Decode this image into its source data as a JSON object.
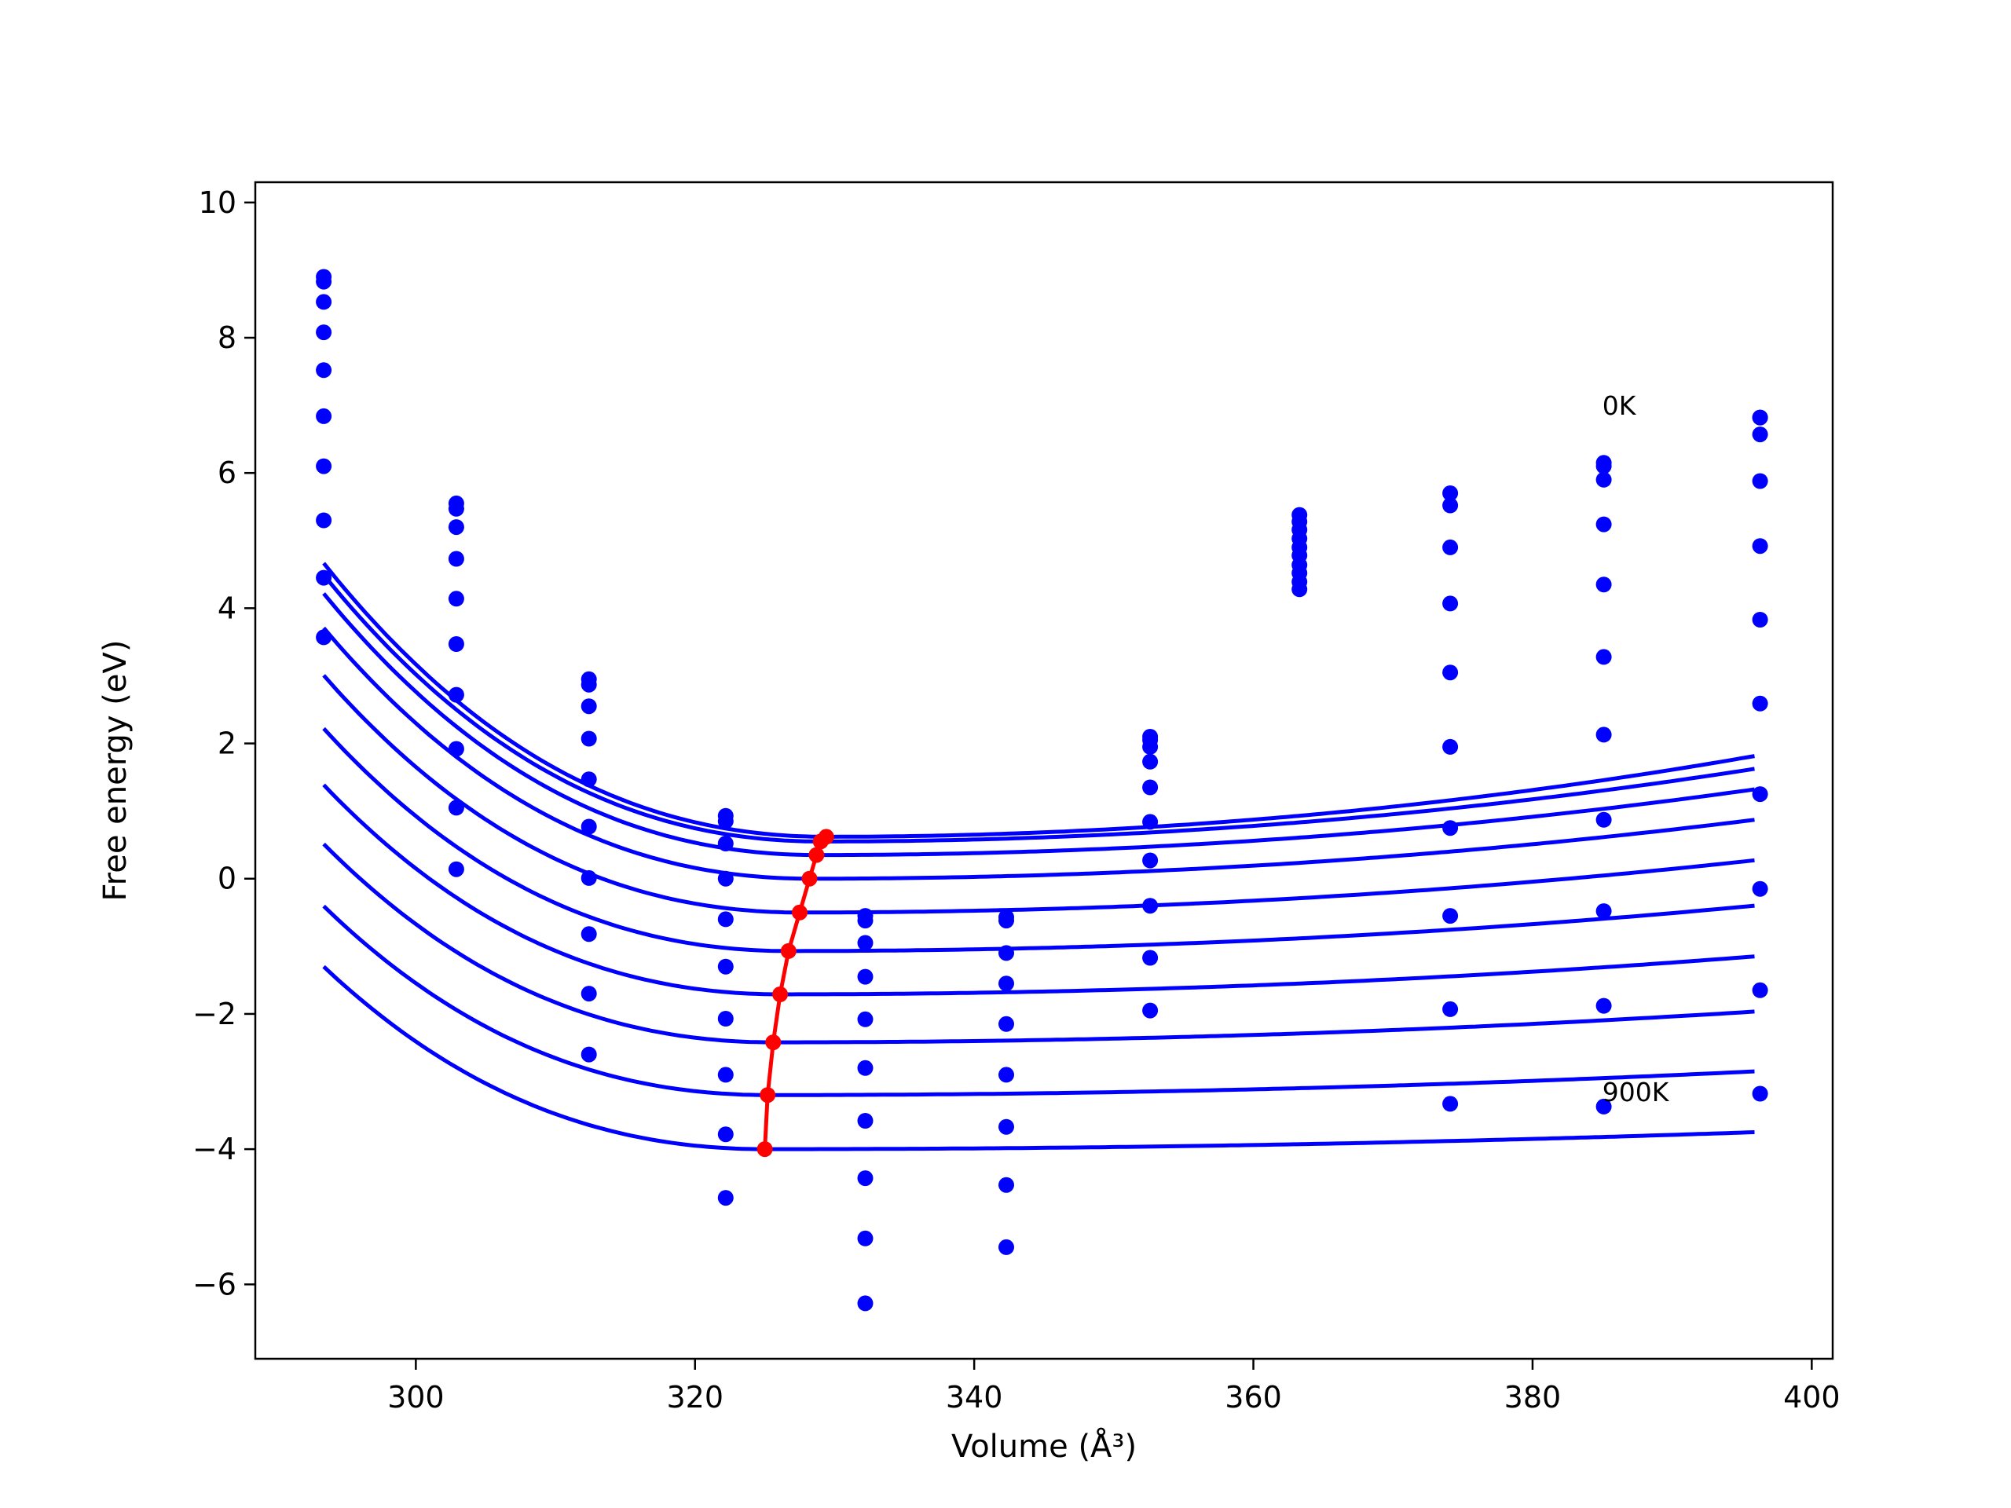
{
  "chart_data": {
    "type": "line",
    "xlabel": "Volume (Å³)",
    "ylabel": "Free energy (eV)",
    "xlim": [
      288.5,
      401.5
    ],
    "ylim": [
      -7.1,
      10.3
    ],
    "xticks": [
      300,
      320,
      340,
      360,
      380,
      400
    ],
    "xtick_labels": [
      "300",
      "320",
      "340",
      "360",
      "380",
      "400"
    ],
    "yticks": [
      -6,
      -4,
      -2,
      0,
      2,
      4,
      6,
      8,
      10
    ],
    "ytick_labels": [
      "−6",
      "−4",
      "−2",
      "0",
      "2",
      "4",
      "6",
      "8",
      "10"
    ],
    "grid": false,
    "colors": {
      "fit": "#0000ff",
      "points": "#0000ff",
      "minimum": "#ff0000"
    },
    "volumes": [
      293.4,
      302.9,
      312.4,
      322.2,
      332.2,
      342.3,
      352.6,
      363.3,
      374.1,
      385.1,
      396.3
    ],
    "energy_points": [
      [
        8.9,
        5.55,
        2.95,
        0.93,
        -0.55,
        -0.57,
        2.1,
        5.38,
        5.7,
        6.15,
        6.82
      ],
      [
        8.83,
        5.47,
        2.87,
        0.85,
        -0.62,
        -0.62,
        2.05,
        5.28,
        5.52,
        6.1,
        6.82
      ],
      [
        8.53,
        5.2,
        2.55,
        0.52,
        -0.95,
        -1.1,
        1.95,
        5.16,
        4.9,
        5.9,
        6.57
      ],
      [
        8.08,
        4.73,
        2.07,
        0.0,
        -1.45,
        -1.55,
        1.73,
        5.03,
        4.07,
        5.24,
        5.88
      ],
      [
        7.52,
        4.14,
        1.47,
        -0.6,
        -2.08,
        -2.15,
        1.35,
        4.9,
        3.05,
        4.35,
        4.92
      ],
      [
        6.84,
        3.47,
        0.77,
        -1.3,
        -2.8,
        -2.9,
        0.84,
        4.78,
        1.95,
        3.28,
        3.83
      ],
      [
        6.1,
        2.72,
        0.01,
        -2.07,
        -3.58,
        -3.67,
        0.27,
        4.64,
        0.75,
        2.13,
        2.59
      ],
      [
        5.3,
        1.92,
        -0.82,
        -2.9,
        -4.43,
        -4.53,
        -0.4,
        4.52,
        -0.55,
        0.87,
        1.25
      ],
      [
        4.45,
        1.05,
        -1.7,
        -3.78,
        -5.32,
        -5.45,
        -1.17,
        4.39,
        -1.93,
        -0.48,
        -0.15
      ],
      [
        3.57,
        0.14,
        -2.6,
        -4.72,
        -6.28,
        null,
        -1.95,
        4.28,
        -3.33,
        -1.88,
        -1.65
      ],
      [
        null,
        null,
        null,
        null,
        null,
        null,
        null,
        null,
        null,
        -3.37,
        -3.18
      ]
    ],
    "series": [
      {
        "name": "0K",
        "v0": 329.4,
        "e0": 0.62,
        "left": 0.00218,
        "right": 0.00027,
        "vmax": 396.3
      },
      {
        "name": "",
        "v0": 329.0,
        "e0": 0.55,
        "left": 0.00218,
        "right": 0.00024,
        "vmax": 396.3
      },
      {
        "name": "",
        "v0": 328.7,
        "e0": 0.35,
        "left": 0.00218,
        "right": 0.000215,
        "vmax": 396.3
      },
      {
        "name": "",
        "v0": 328.2,
        "e0": 0.0,
        "left": 0.00216,
        "right": 0.00019,
        "vmax": 396.3
      },
      {
        "name": "",
        "v0": 327.5,
        "e0": -0.5,
        "left": 0.00214,
        "right": 0.000165,
        "vmax": 396.3
      },
      {
        "name": "",
        "v0": 326.7,
        "e0": -1.07,
        "left": 0.00212,
        "right": 0.00014,
        "vmax": 396.3
      },
      {
        "name": "",
        "v0": 326.1,
        "e0": -1.71,
        "left": 0.00208,
        "right": 0.000115,
        "vmax": 396.3
      },
      {
        "name": "",
        "v0": 325.6,
        "e0": -2.42,
        "left": 0.00204,
        "right": 9.2e-05,
        "vmax": 396.3
      },
      {
        "name": "",
        "v0": 325.2,
        "e0": -3.2,
        "left": 0.002,
        "right": 7e-05,
        "vmax": 396.3
      },
      {
        "name": "900K",
        "v0": 325.0,
        "e0": -4.0,
        "left": 0.00196,
        "right": 5e-05,
        "vmax": 396.3
      }
    ],
    "minimum_curve": {
      "v": [
        329.4,
        329.0,
        328.7,
        328.2,
        327.5,
        326.7,
        326.1,
        325.6,
        325.2,
        325.0
      ],
      "e": [
        0.62,
        0.55,
        0.35,
        0.0,
        -0.5,
        -1.07,
        -1.71,
        -2.42,
        -3.2,
        -4.0
      ]
    },
    "annotations": [
      {
        "text": "0K",
        "x": 385.0,
        "y": 7.0
      },
      {
        "text": "900K",
        "x": 385.0,
        "y": -3.15
      }
    ]
  }
}
